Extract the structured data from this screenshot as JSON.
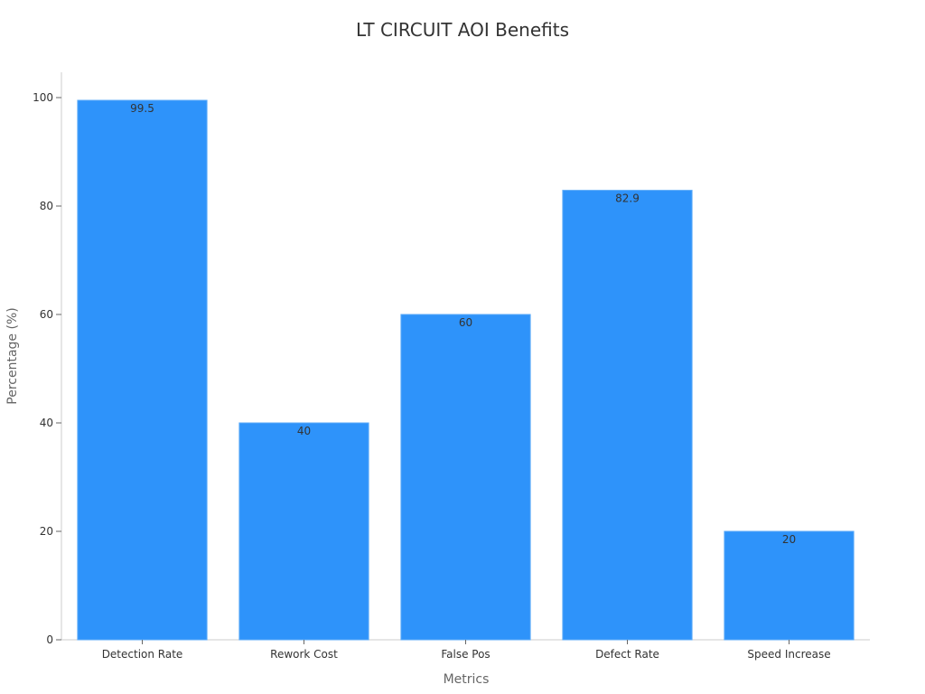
{
  "colors": {
    "bar": "#2e93fa",
    "bar_edge": "#5aaaf8"
  },
  "chart_data": {
    "type": "bar",
    "title": "LT CIRCUIT AOI Benefits",
    "xlabel": "Metrics",
    "ylabel": "Percentage (%)",
    "categories": [
      "Detection Rate",
      "Rework Cost",
      "False Pos",
      "Defect Rate",
      "Speed Increase"
    ],
    "values": [
      99.5,
      40,
      60,
      82.9,
      20
    ],
    "value_labels": [
      "99.5",
      "40",
      "60",
      "82.9",
      "20"
    ],
    "ylim": [
      0,
      105
    ],
    "yticks": [
      0,
      20,
      40,
      60,
      80,
      100
    ],
    "grid": false,
    "legend": "none"
  }
}
